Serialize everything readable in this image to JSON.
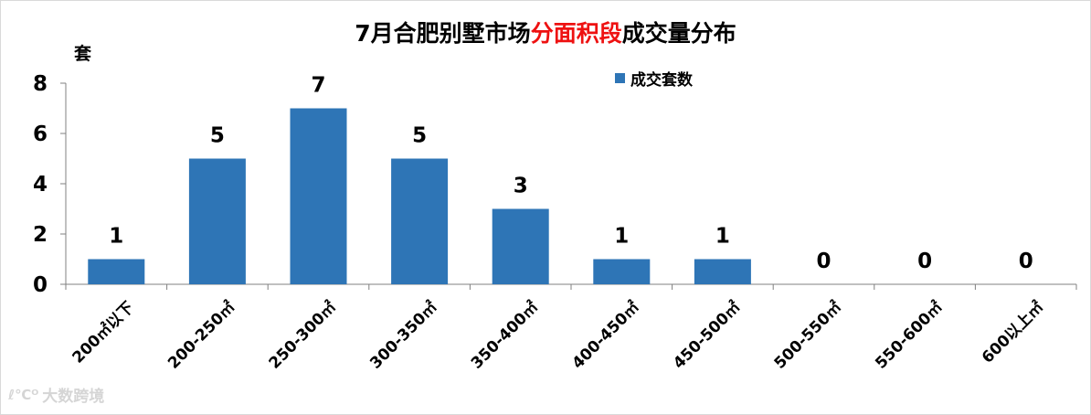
{
  "title": {
    "prefix": "7月合肥别墅市场",
    "highlight": "分面积段",
    "suffix": "成交量分布"
  },
  "watermark": {
    "logo": "ℓ℃ᴼ",
    "text": "大数跨境"
  },
  "chart_data": {
    "type": "bar",
    "title": "7月合肥别墅市场分面积段成交量分布",
    "ylabel": "套",
    "xlabel": "",
    "categories": [
      "200㎡以下",
      "200-250㎡",
      "250-300㎡",
      "300-350㎡",
      "350-400㎡",
      "400-450㎡",
      "450-500㎡",
      "500-550㎡",
      "550-600㎡",
      "600以上㎡"
    ],
    "series": [
      {
        "name": "成交套数",
        "values": [
          1,
          5,
          7,
          5,
          3,
          1,
          1,
          0,
          0,
          0
        ],
        "color": "#2e75b6"
      }
    ],
    "ylim": [
      0,
      8
    ],
    "yticks": [
      0,
      2,
      4,
      6,
      8
    ],
    "grid": false,
    "legend": "top-right",
    "data_labels": true
  }
}
